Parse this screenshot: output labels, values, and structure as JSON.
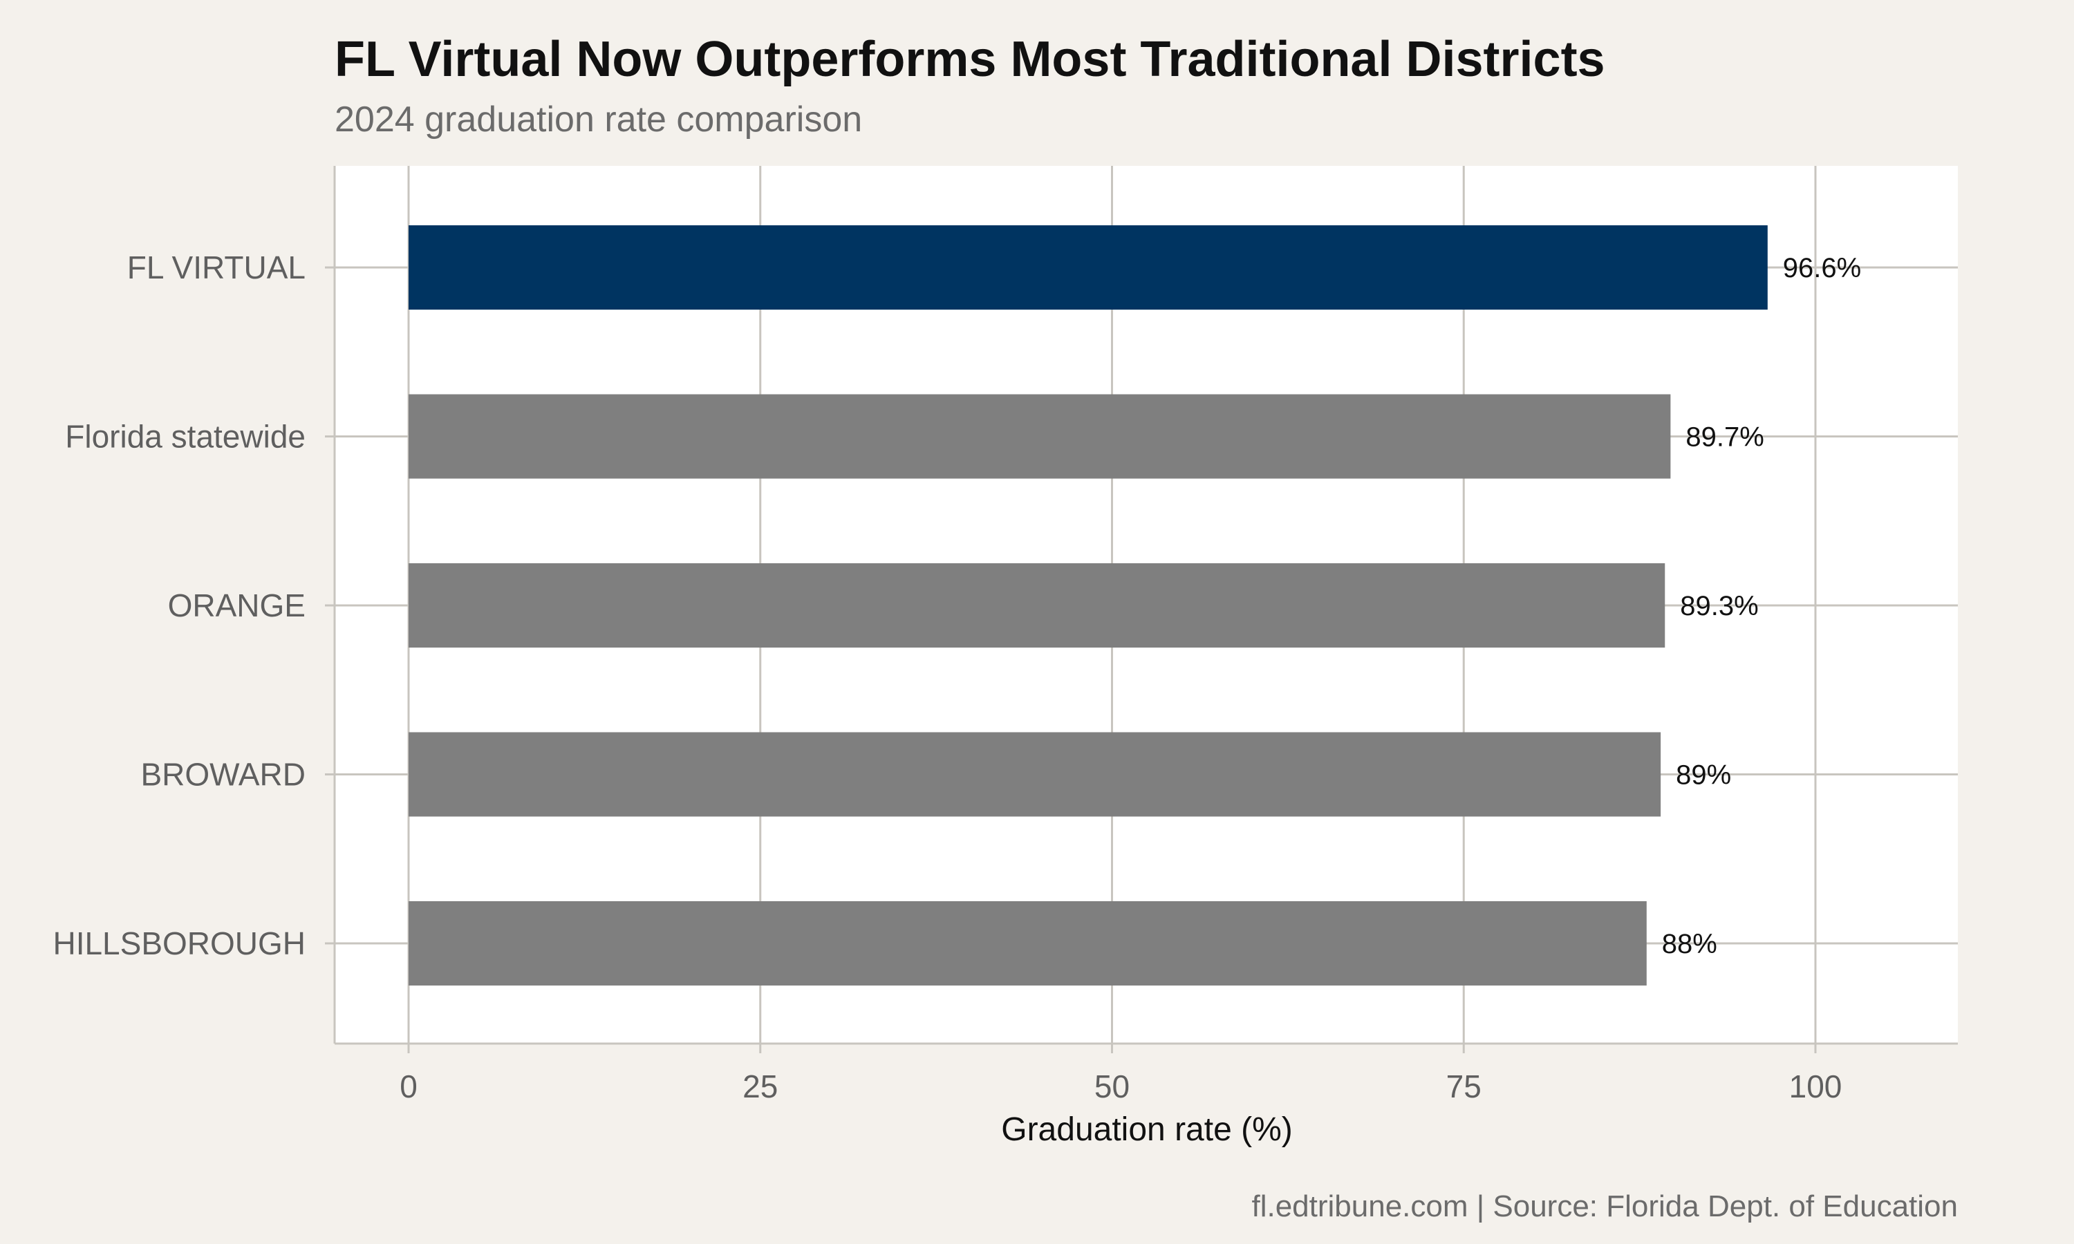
{
  "chart_data": {
    "type": "bar",
    "orientation": "horizontal",
    "title": "FL Virtual Now Outperforms Most Traditional Districts",
    "subtitle": "2024 graduation rate comparison",
    "xlabel": "Graduation rate (%)",
    "ylabel": "",
    "xlim": [
      0,
      110
    ],
    "xticks": [
      0,
      25,
      50,
      75,
      100
    ],
    "xtick_labels": [
      "0",
      "25",
      "50",
      "75",
      "100"
    ],
    "grid": true,
    "categories": [
      "FL VIRTUAL",
      "Florida statewide",
      "ORANGE",
      "BROWARD",
      "HILLSBOROUGH"
    ],
    "values": [
      96.6,
      89.7,
      89.3,
      89,
      88
    ],
    "data_labels": [
      "96.6%",
      "89.7%",
      "89.3%",
      "89%",
      "88%"
    ],
    "bar_colors": [
      "#003461",
      "#7f7f7f",
      "#7f7f7f",
      "#7f7f7f",
      "#7f7f7f"
    ],
    "caption": "fl.edtribune.com | Source: Florida Dept. of Education"
  },
  "colors": {
    "background": "#f4f1ec",
    "panel": "#ffffff",
    "grid": "#c8c5bf",
    "highlight": "#003461",
    "other": "#7f7f7f"
  }
}
